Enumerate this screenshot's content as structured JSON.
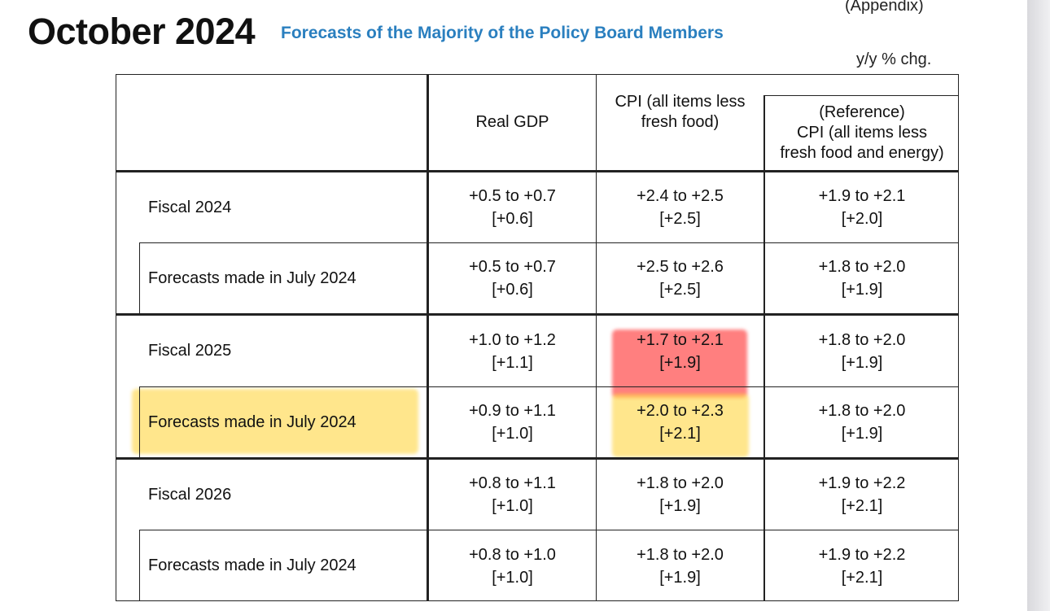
{
  "header": {
    "title": "October 2024",
    "subtitle": "Forecasts of the Majority of the Policy Board Members",
    "appendix": "(Appendix)",
    "unit": "y/y % chg."
  },
  "columns": {
    "gdp": "Real GDP",
    "cpi": [
      "CPI (all items less",
      "fresh food)"
    ],
    "ref": [
      "(Reference)",
      "CPI (all items less",
      "fresh food and energy)"
    ]
  },
  "rows": [
    {
      "label": "Fiscal 2024",
      "gdp": [
        "+0.5 to +0.7",
        "[+0.6]"
      ],
      "cpi": [
        "+2.4 to +2.5",
        "[+2.5]"
      ],
      "ref": [
        "+1.9 to +2.1",
        "[+2.0]"
      ]
    },
    {
      "label": "Forecasts made in July 2024",
      "gdp": [
        "+0.5 to +0.7",
        "[+0.6]"
      ],
      "cpi": [
        "+2.5 to +2.6",
        "[+2.5]"
      ],
      "ref": [
        "+1.8 to +2.0",
        "[+1.9]"
      ]
    },
    {
      "label": "Fiscal 2025",
      "gdp": [
        "+1.0 to +1.2",
        "[+1.1]"
      ],
      "cpi": [
        "+1.7 to +2.1",
        "[+1.9]"
      ],
      "ref": [
        "+1.8 to +2.0",
        "[+1.9]"
      ]
    },
    {
      "label": "Forecasts made in July 2024",
      "gdp": [
        "+0.9 to +1.1",
        "[+1.0]"
      ],
      "cpi": [
        "+2.0 to +2.3",
        "[+2.1]"
      ],
      "ref": [
        "+1.8 to +2.0",
        "[+1.9]"
      ]
    },
    {
      "label": "Fiscal 2026",
      "gdp": [
        "+0.8 to +1.1",
        "[+1.0]"
      ],
      "cpi": [
        "+1.8 to +2.0",
        "[+1.9]"
      ],
      "ref": [
        "+1.9 to +2.2",
        "[+2.1]"
      ]
    },
    {
      "label": "Forecasts made in July 2024",
      "gdp": [
        "+0.8 to +1.0",
        "[+1.0]"
      ],
      "cpi": [
        "+1.8 to +2.0",
        "[+1.9]"
      ],
      "ref": [
        "+1.9 to +2.2",
        "[+2.1]"
      ]
    }
  ],
  "highlights": {
    "red": "#ff5f5f",
    "yellow": "#ffd746"
  }
}
